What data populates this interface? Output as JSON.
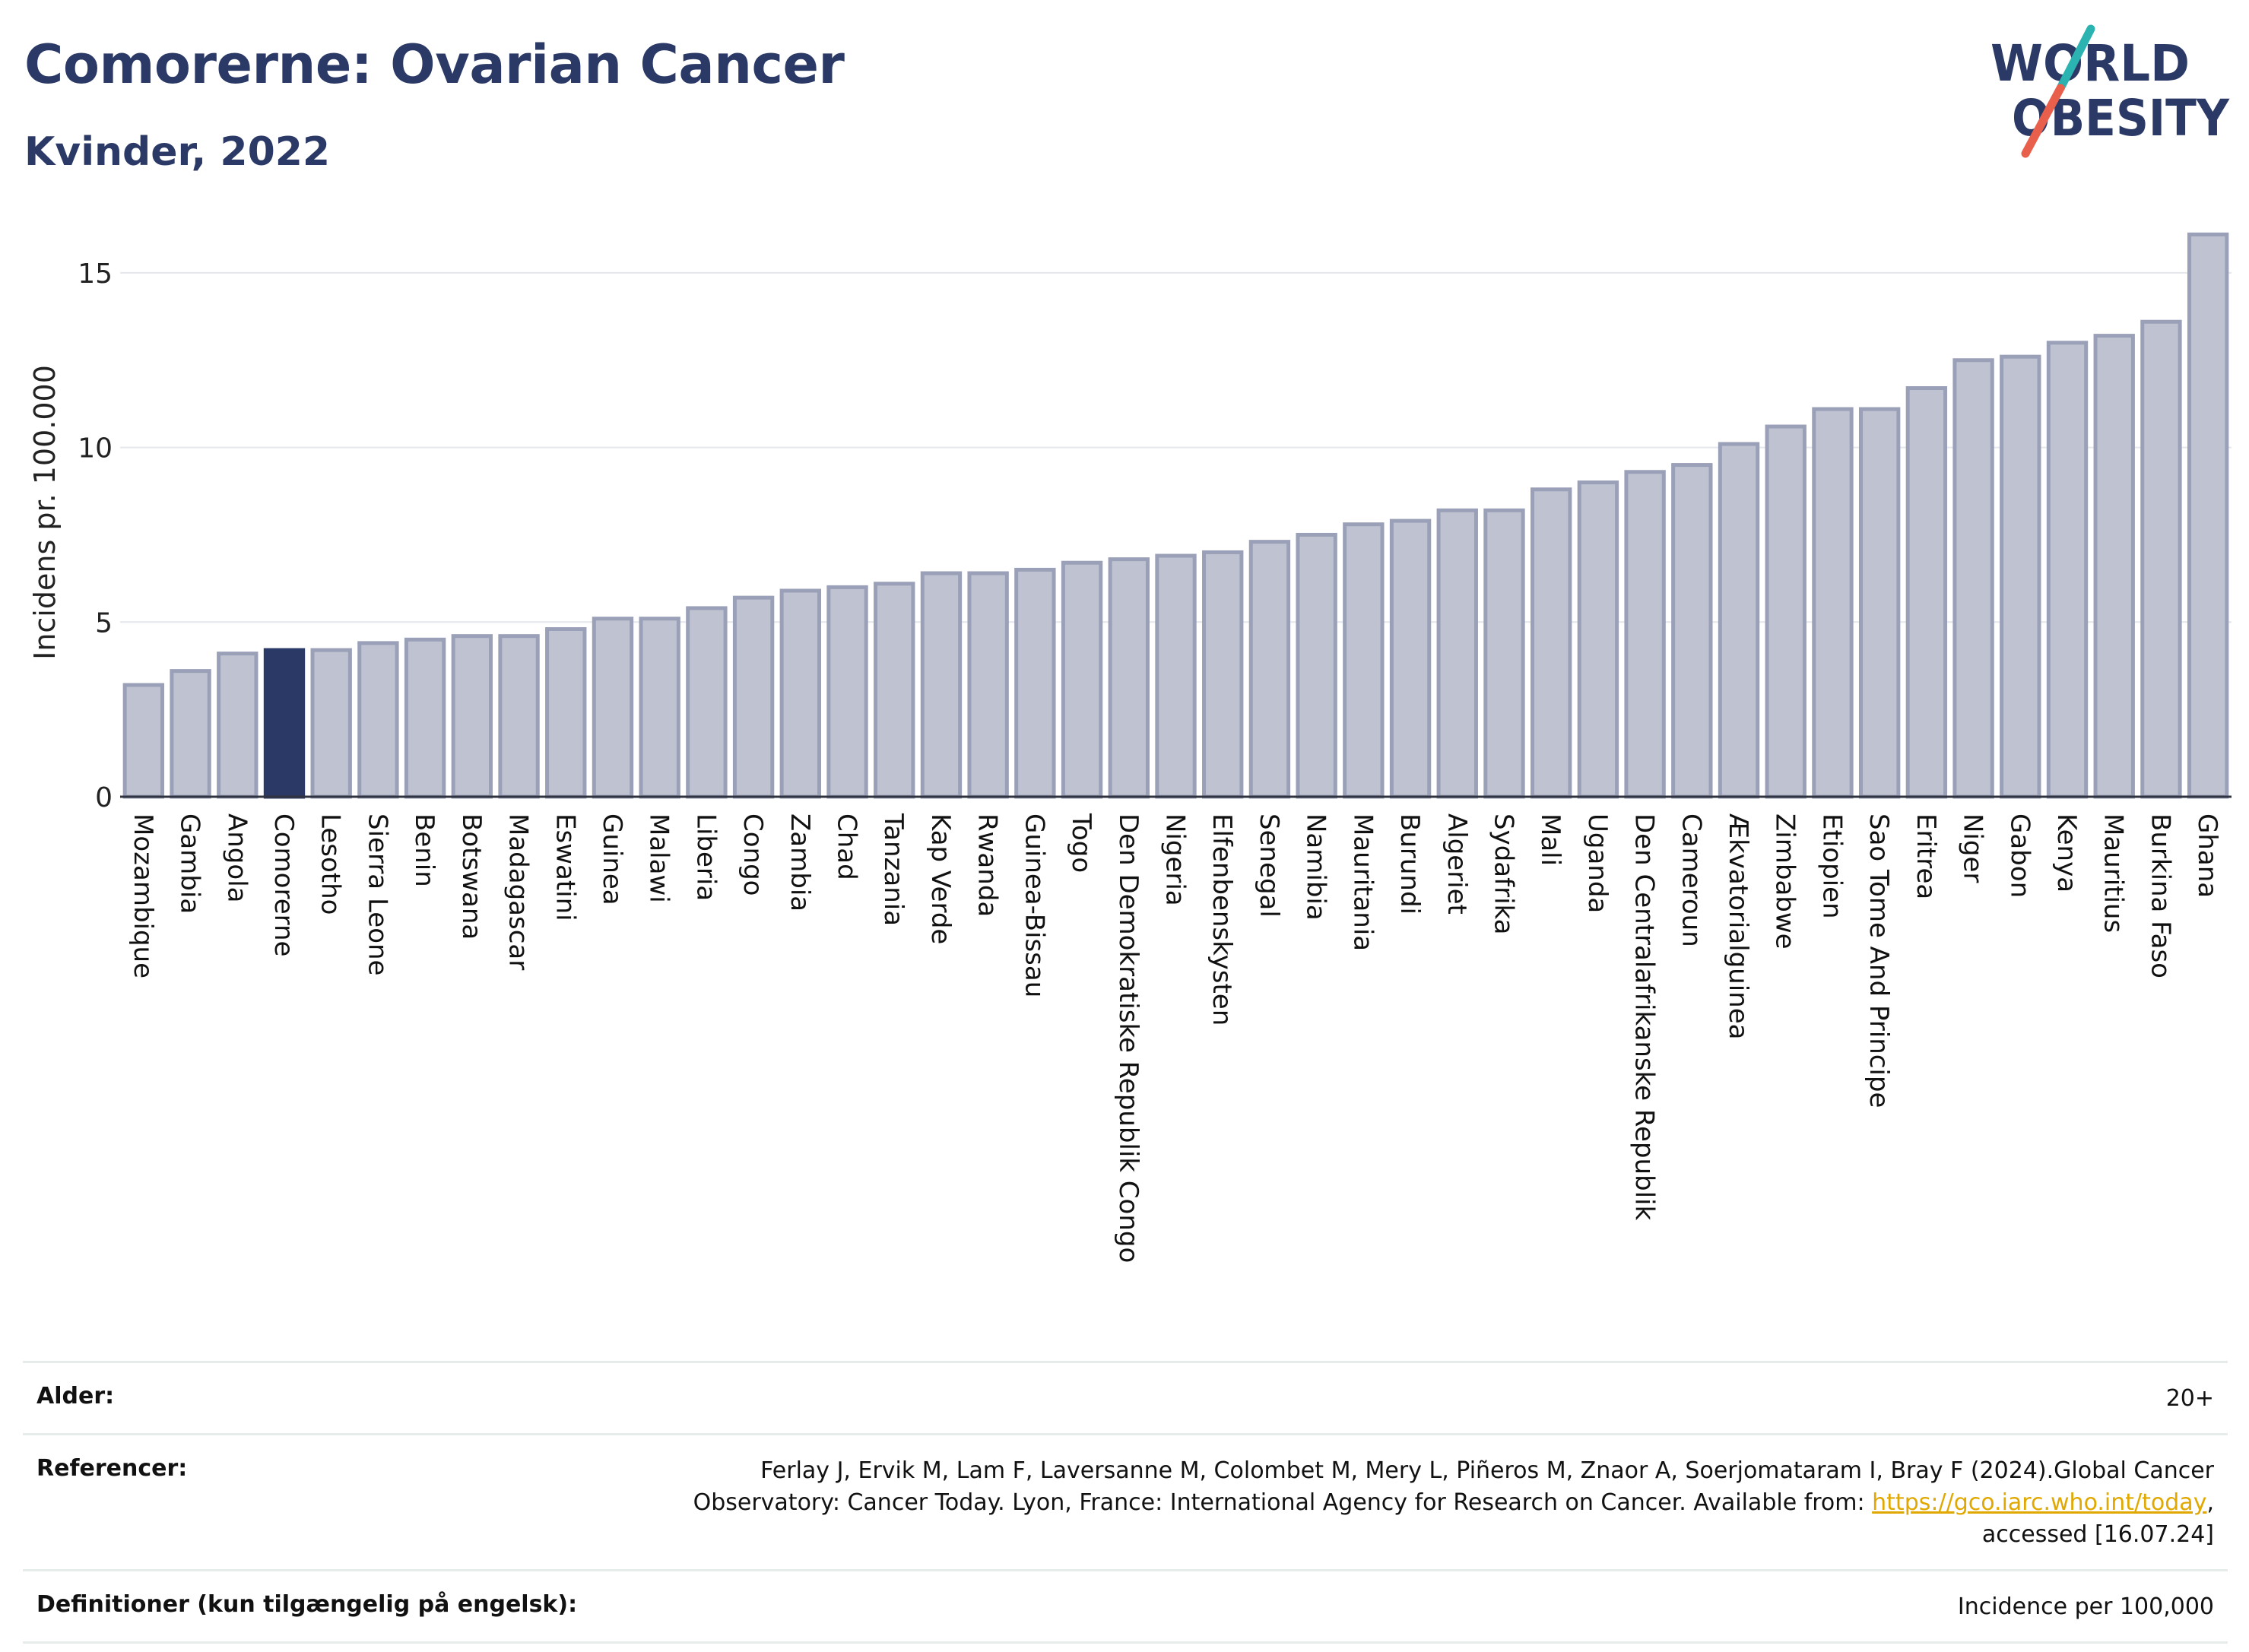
{
  "title": "Comorerne: Ovarian Cancer",
  "subtitle": "Kvinder, 2022",
  "logo": {
    "line1": "WORLD",
    "line2": "OBESITY",
    "text_color": "#2b3966",
    "slash_colors": [
      "#2bb3b1",
      "#e8604c"
    ]
  },
  "colors": {
    "bar_default": "#bfc3d1",
    "bar_stroke": "#9aa0b7",
    "bar_highlight": "#2b3966",
    "title": "#2b3966",
    "link": "#e0a800"
  },
  "chart_data": {
    "type": "bar",
    "title": "Comorerne: Ovarian Cancer",
    "subtitle": "Kvinder, 2022",
    "xlabel": "",
    "ylabel": "Incidens pr. 100.000",
    "ylim": [
      0,
      16.5
    ],
    "yticks": [
      0,
      5,
      10,
      15
    ],
    "grid": true,
    "highlight": "Comorerne",
    "categories": [
      "Mozambique",
      "Gambia",
      "Angola",
      "Comorerne",
      "Lesotho",
      "Sierra Leone",
      "Benin",
      "Botswana",
      "Madagascar",
      "Eswatini",
      "Guinea",
      "Malawi",
      "Liberia",
      "Congo",
      "Zambia",
      "Chad",
      "Tanzania",
      "Kap Verde",
      "Rwanda",
      "Guinea-Bissau",
      "Togo",
      "Den Demokratiske Republik Congo",
      "Nigeria",
      "Elfenbenskysten",
      "Senegal",
      "Namibia",
      "Mauritania",
      "Burundi",
      "Algeriet",
      "Sydafrika",
      "Mali",
      "Uganda",
      "Den Centralafrikanske Republik",
      "Cameroun",
      "Ækvatorialguinea",
      "Zimbabwe",
      "Etiopien",
      "Sao Tome And Principe",
      "Eritrea",
      "Niger",
      "Gabon",
      "Kenya",
      "Mauritius",
      "Burkina Faso",
      "Ghana"
    ],
    "values": [
      3.2,
      3.6,
      4.1,
      4.2,
      4.2,
      4.4,
      4.5,
      4.6,
      4.6,
      4.8,
      5.1,
      5.1,
      5.4,
      5.7,
      5.9,
      6.0,
      6.1,
      6.4,
      6.4,
      6.5,
      6.7,
      6.8,
      6.9,
      7.0,
      7.3,
      7.5,
      7.8,
      7.9,
      8.2,
      8.2,
      8.8,
      9.0,
      9.3,
      9.5,
      10.1,
      10.6,
      11.1,
      11.1,
      11.7,
      12.5,
      12.6,
      13.0,
      13.2,
      13.6,
      16.1
    ]
  },
  "footer": {
    "age_label": "Alder:",
    "age_value": "20+",
    "ref_label": "Referencer:",
    "ref_text_1": "Ferlay J, Ervik M, Lam F, Laversanne M, Colombet M, Mery L, Piñeros M, Znaor A, Soerjomataram I, Bray F (2024).Global Cancer",
    "ref_text_2": "Observatory: Cancer Today. Lyon, France: International Agency for Research on Cancer. Available from: ",
    "ref_link": "https://gco.iarc.who.int/today",
    "ref_text_3": ",",
    "ref_text_4": "accessed [16.07.24]",
    "def_label": "Definitioner (kun tilgængelig på engelsk):",
    "def_value": "Incidence per 100,000"
  }
}
